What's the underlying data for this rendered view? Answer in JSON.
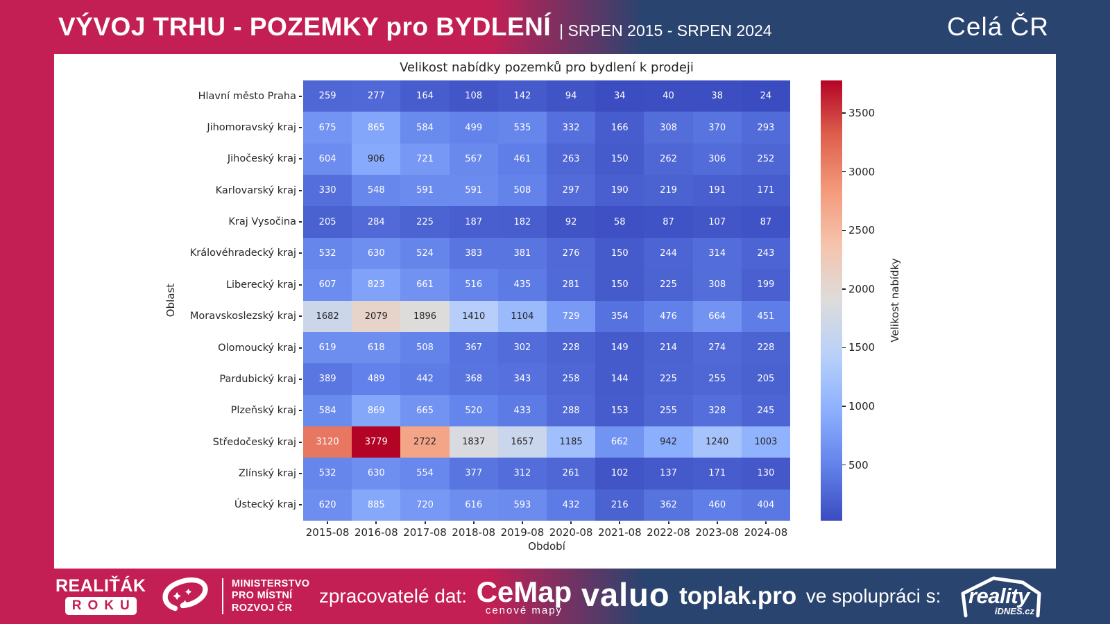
{
  "header": {
    "title": "VÝVOJ TRHU - POZEMKY pro BYDLENÍ",
    "period": "| SRPEN 2015 - SRPEN 2024",
    "region": "Celá ČR"
  },
  "colors": {
    "crimson": "#c41f54",
    "navy": "#2a4470",
    "annot_dark": "#262626",
    "annot_light": "#ffffff"
  },
  "chart_data": {
    "type": "heatmap",
    "title": "Velikost nabídky pozemků pro bydlení k prodeji",
    "xlabel": "Období",
    "ylabel": "Oblast",
    "colorbar_label": "Velikost nabídky",
    "colormap": "coolwarm",
    "vmin": 24,
    "vmax": 3779,
    "colorbar_ticks": [
      500,
      1000,
      1500,
      2000,
      2500,
      3000,
      3500
    ],
    "x": [
      "2015-08",
      "2016-08",
      "2017-08",
      "2018-08",
      "2019-08",
      "2020-08",
      "2021-08",
      "2022-08",
      "2023-08",
      "2024-08"
    ],
    "rows": [
      "Hlavní město Praha",
      "Jihomoravský kraj",
      "Jihočeský kraj",
      "Karlovarský kraj",
      "Kraj Vysočina",
      "Královéhradecký kraj",
      "Liberecký kraj",
      "Moravskoslezský kraj",
      "Olomoucký kraj",
      "Pardubický kraj",
      "Plzeňský kraj",
      "Středočeský kraj",
      "Zlínský kraj",
      "Ústecký kraj"
    ],
    "values": [
      [
        259,
        277,
        164,
        108,
        142,
        94,
        34,
        40,
        38,
        24
      ],
      [
        675,
        865,
        584,
        499,
        535,
        332,
        166,
        308,
        370,
        293
      ],
      [
        604,
        906,
        721,
        567,
        461,
        263,
        150,
        262,
        306,
        252
      ],
      [
        330,
        548,
        591,
        591,
        508,
        297,
        190,
        219,
        191,
        171
      ],
      [
        205,
        284,
        225,
        187,
        182,
        92,
        58,
        87,
        107,
        87
      ],
      [
        532,
        630,
        524,
        383,
        381,
        276,
        150,
        244,
        314,
        243
      ],
      [
        607,
        823,
        661,
        516,
        435,
        281,
        150,
        225,
        308,
        199
      ],
      [
        1682,
        2079,
        1896,
        1410,
        1104,
        729,
        354,
        476,
        664,
        451
      ],
      [
        619,
        618,
        508,
        367,
        302,
        228,
        149,
        214,
        274,
        228
      ],
      [
        389,
        489,
        442,
        368,
        343,
        258,
        144,
        225,
        255,
        205
      ],
      [
        584,
        869,
        665,
        520,
        433,
        288,
        153,
        255,
        328,
        245
      ],
      [
        3120,
        3779,
        2722,
        1837,
        1657,
        1185,
        662,
        942,
        1240,
        1003
      ],
      [
        532,
        630,
        554,
        377,
        312,
        261,
        102,
        137,
        171,
        130
      ],
      [
        620,
        885,
        720,
        616,
        593,
        432,
        216,
        362,
        460,
        404
      ]
    ]
  },
  "footer": {
    "realitak_line1": "REALIŤÁK",
    "realitak_line2": "ROKU",
    "ministry": [
      "MINISTERSTVO",
      "PRO MÍSTNÍ",
      "ROZVOJ ČR"
    ],
    "zpracovatele": "zpracovatelé dat:",
    "cemap": "CeMap",
    "cemap_sub": "cenové mapy",
    "valuo": "valuo",
    "toplak": "toplak.pro",
    "spoluprace": "ve spolupráci s:",
    "reality": "reality",
    "reality_sub": "iDNES.cz"
  }
}
